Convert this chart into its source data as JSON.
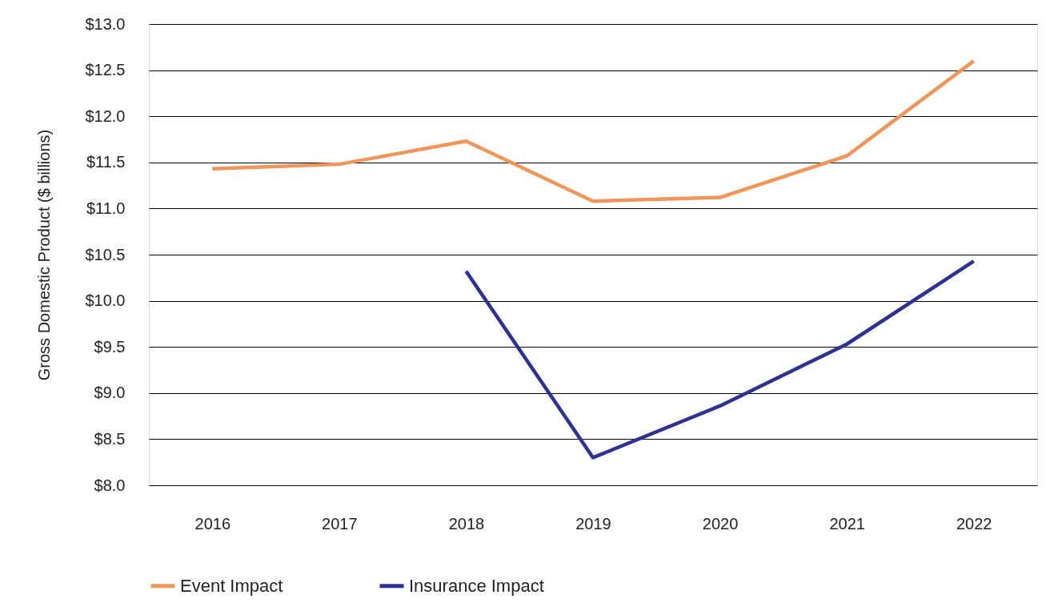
{
  "chart_data": {
    "type": "line",
    "ylabel": "Gross Domestic Product ($ billions)",
    "categories": [
      "2016",
      "2017",
      "2018",
      "2019",
      "2020",
      "2021",
      "2022"
    ],
    "series": [
      {
        "name": "Event Impact",
        "color": "#f0965a",
        "values": [
          11.43,
          11.48,
          11.73,
          11.08,
          11.12,
          11.57,
          12.6
        ]
      },
      {
        "name": "Insurance Impact",
        "color": "#2e3192",
        "values": [
          null,
          null,
          10.32,
          8.3,
          8.86,
          9.53,
          10.43
        ]
      }
    ],
    "ylim": [
      8.0,
      13.0
    ],
    "yticks": [
      {
        "value": 8.0,
        "label": "$8.0"
      },
      {
        "value": 8.5,
        "label": "$8.5"
      },
      {
        "value": 9.0,
        "label": "$9.0"
      },
      {
        "value": 9.5,
        "label": "$9.5"
      },
      {
        "value": 10.0,
        "label": "$10.0"
      },
      {
        "value": 10.5,
        "label": "$10.5"
      },
      {
        "value": 11.0,
        "label": "$11.0"
      },
      {
        "value": 11.5,
        "label": "$11.5"
      },
      {
        "value": 12.0,
        "label": "$12.0"
      },
      {
        "value": 12.5,
        "label": "$12.5"
      },
      {
        "value": 13.0,
        "label": "$13.0"
      }
    ],
    "grid": "y",
    "legend": "bottom",
    "marker": "none",
    "line_style": "solid"
  }
}
